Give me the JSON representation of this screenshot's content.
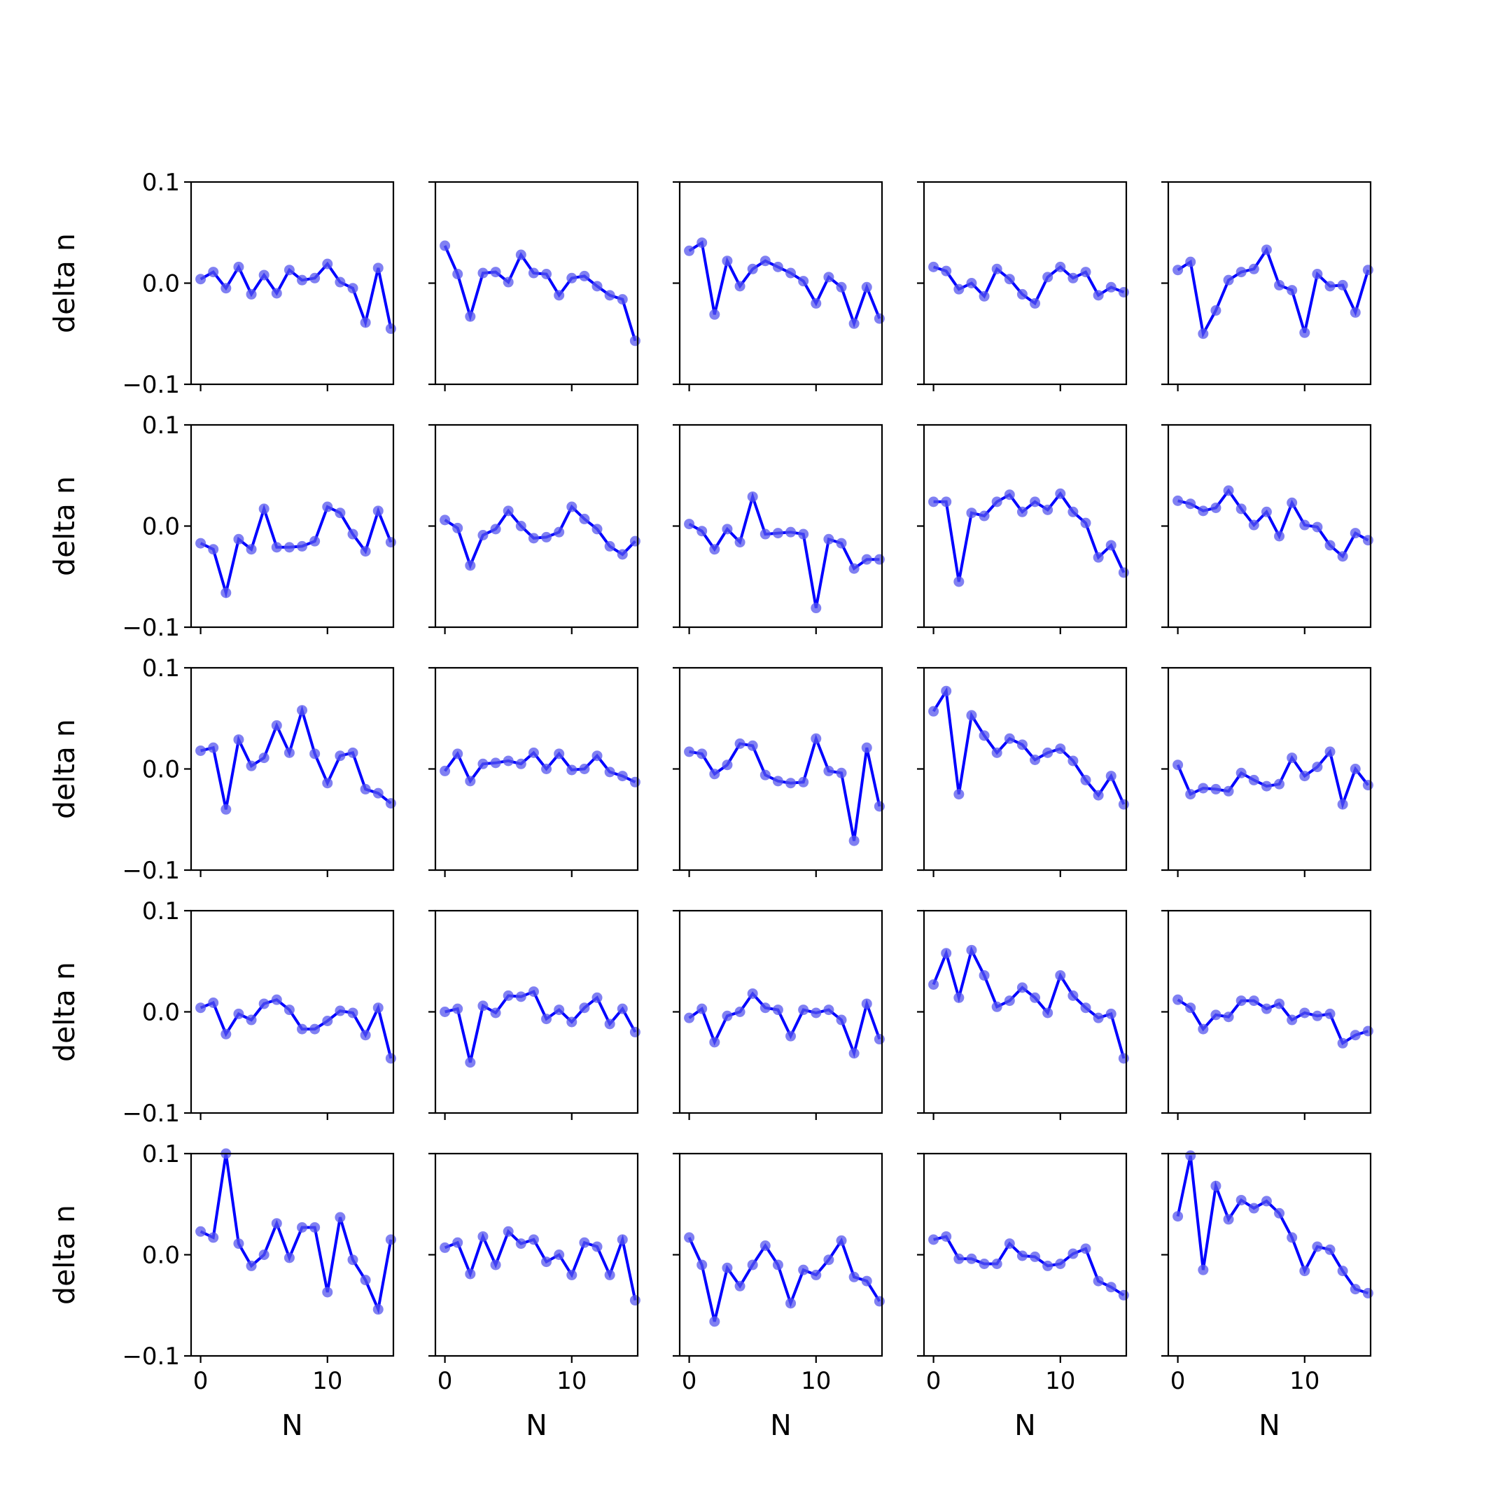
{
  "chart_data": {
    "type": "line",
    "layout": "5x5 grid of small multiples, shared x and y axes",
    "xlabel": "N",
    "ylabel": "delta n",
    "xlim": [
      -0.75,
      15.2
    ],
    "ylim": [
      -0.1,
      0.1
    ],
    "x_ticks": [
      0,
      10
    ],
    "x_tick_labels": [
      "0",
      "10"
    ],
    "y_ticks": [
      -0.1,
      0.0,
      0.1
    ],
    "y_tick_labels": [
      "−0.1",
      "0.0",
      "0.1"
    ],
    "x": [
      0,
      1,
      2,
      3,
      4,
      5,
      6,
      7,
      8,
      9,
      10,
      11,
      12,
      13,
      14,
      15
    ],
    "line_color": "#0000ff",
    "marker_color": "#5555ee",
    "grid": false,
    "legend": false,
    "panels": [
      [
        0.004,
        0.011,
        -0.005,
        0.016,
        -0.011,
        0.008,
        -0.01,
        0.013,
        0.003,
        0.005,
        0.019,
        0.001,
        -0.005,
        -0.039,
        0.015,
        -0.045
      ],
      [
        0.037,
        0.009,
        -0.033,
        0.01,
        0.011,
        0.001,
        0.028,
        0.01,
        0.009,
        -0.012,
        0.005,
        0.007,
        -0.003,
        -0.012,
        -0.016,
        -0.057
      ],
      [
        0.032,
        0.04,
        -0.031,
        0.022,
        -0.003,
        0.014,
        0.022,
        0.016,
        0.01,
        0.002,
        -0.02,
        0.006,
        -0.004,
        -0.04,
        -0.004,
        -0.035
      ],
      [
        0.016,
        0.012,
        -0.006,
        0.0,
        -0.013,
        0.014,
        0.004,
        -0.011,
        -0.02,
        0.006,
        0.016,
        0.005,
        0.011,
        -0.012,
        -0.004,
        -0.009
      ],
      [
        0.013,
        0.021,
        -0.05,
        -0.027,
        0.003,
        0.011,
        0.014,
        0.033,
        -0.002,
        -0.007,
        -0.049,
        0.009,
        -0.003,
        -0.002,
        -0.029,
        0.013
      ],
      [
        -0.017,
        -0.023,
        -0.066,
        -0.013,
        -0.023,
        0.017,
        -0.021,
        -0.021,
        -0.02,
        -0.015,
        0.019,
        0.013,
        -0.008,
        -0.025,
        0.015,
        -0.016
      ],
      [
        0.006,
        -0.002,
        -0.039,
        -0.009,
        -0.003,
        0.015,
        0.0,
        -0.012,
        -0.011,
        -0.006,
        0.019,
        0.007,
        -0.003,
        -0.02,
        -0.028,
        -0.015
      ],
      [
        0.002,
        -0.005,
        -0.023,
        -0.003,
        -0.016,
        0.029,
        -0.008,
        -0.007,
        -0.006,
        -0.008,
        -0.081,
        -0.013,
        -0.017,
        -0.042,
        -0.033,
        -0.033
      ],
      [
        0.024,
        0.024,
        -0.055,
        0.013,
        0.01,
        0.024,
        0.031,
        0.014,
        0.024,
        0.016,
        0.032,
        0.014,
        0.003,
        -0.031,
        -0.019,
        -0.046
      ],
      [
        0.025,
        0.022,
        0.015,
        0.018,
        0.035,
        0.017,
        0.001,
        0.014,
        -0.01,
        0.023,
        0.001,
        -0.001,
        -0.019,
        -0.03,
        -0.007,
        -0.014
      ],
      [
        0.018,
        0.021,
        -0.04,
        0.029,
        0.003,
        0.011,
        0.043,
        0.016,
        0.058,
        0.015,
        -0.014,
        0.013,
        0.016,
        -0.02,
        -0.024,
        -0.034
      ],
      [
        -0.002,
        0.015,
        -0.012,
        0.005,
        0.006,
        0.008,
        0.005,
        0.016,
        0.0,
        0.015,
        -0.001,
        0.0,
        0.013,
        -0.003,
        -0.007,
        -0.013
      ],
      [
        0.017,
        0.015,
        -0.005,
        0.004,
        0.025,
        0.023,
        -0.006,
        -0.012,
        -0.014,
        -0.013,
        0.03,
        -0.002,
        -0.004,
        -0.071,
        0.021,
        -0.037
      ],
      [
        0.057,
        0.077,
        -0.025,
        0.053,
        0.033,
        0.016,
        0.03,
        0.024,
        0.009,
        0.016,
        0.02,
        0.008,
        -0.011,
        -0.026,
        -0.007,
        -0.035
      ],
      [
        0.004,
        -0.025,
        -0.019,
        -0.02,
        -0.022,
        -0.004,
        -0.011,
        -0.017,
        -0.015,
        0.011,
        -0.007,
        0.002,
        0.017,
        -0.035,
        0.0,
        -0.016
      ]
    ]
  }
}
